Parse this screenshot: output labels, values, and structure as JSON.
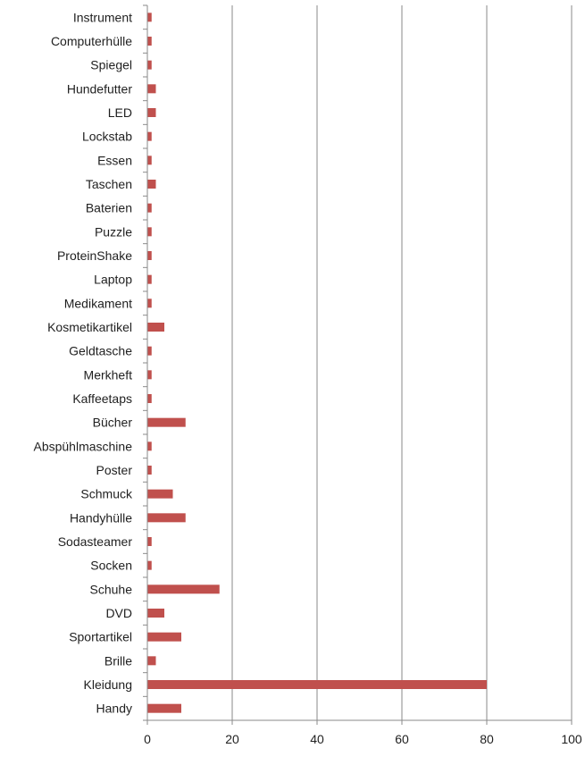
{
  "chart_data": {
    "type": "bar",
    "orientation": "horizontal",
    "categories": [
      "Instrument",
      "Computerhülle",
      "Spiegel",
      "Hundefutter",
      "LED",
      "Lockstab",
      "Essen",
      "Taschen",
      "Baterien",
      "Puzzle",
      "ProteinShake",
      "Laptop",
      "Medikament",
      "Kosmetikartikel",
      "Geldtasche",
      "Merkheft",
      "Kaffeetaps",
      "Bücher",
      "Abspühlmaschine",
      "Poster",
      "Schmuck",
      "Handyhülle",
      "Sodasteamer",
      "Socken",
      "Schuhe",
      "DVD",
      "Sportartikel",
      "Brille",
      "Kleidung",
      "Handy"
    ],
    "values": [
      1,
      1,
      1,
      2,
      2,
      1,
      1,
      2,
      1,
      1,
      1,
      1,
      1,
      4,
      1,
      1,
      1,
      9,
      1,
      1,
      6,
      9,
      1,
      1,
      17,
      4,
      8,
      2,
      80,
      8
    ],
    "title": "",
    "xlabel": "",
    "ylabel": "",
    "xlim": [
      0,
      100
    ],
    "xticks": [
      "0",
      "20",
      "40",
      "60",
      "80",
      "100"
    ],
    "grid": "vertical gridlines",
    "legend": "none",
    "colors": {
      "bar": "#c0504d",
      "grid": "#8a8a8a",
      "axis": "#8a8a8a",
      "text": "#1f1f1f"
    }
  }
}
